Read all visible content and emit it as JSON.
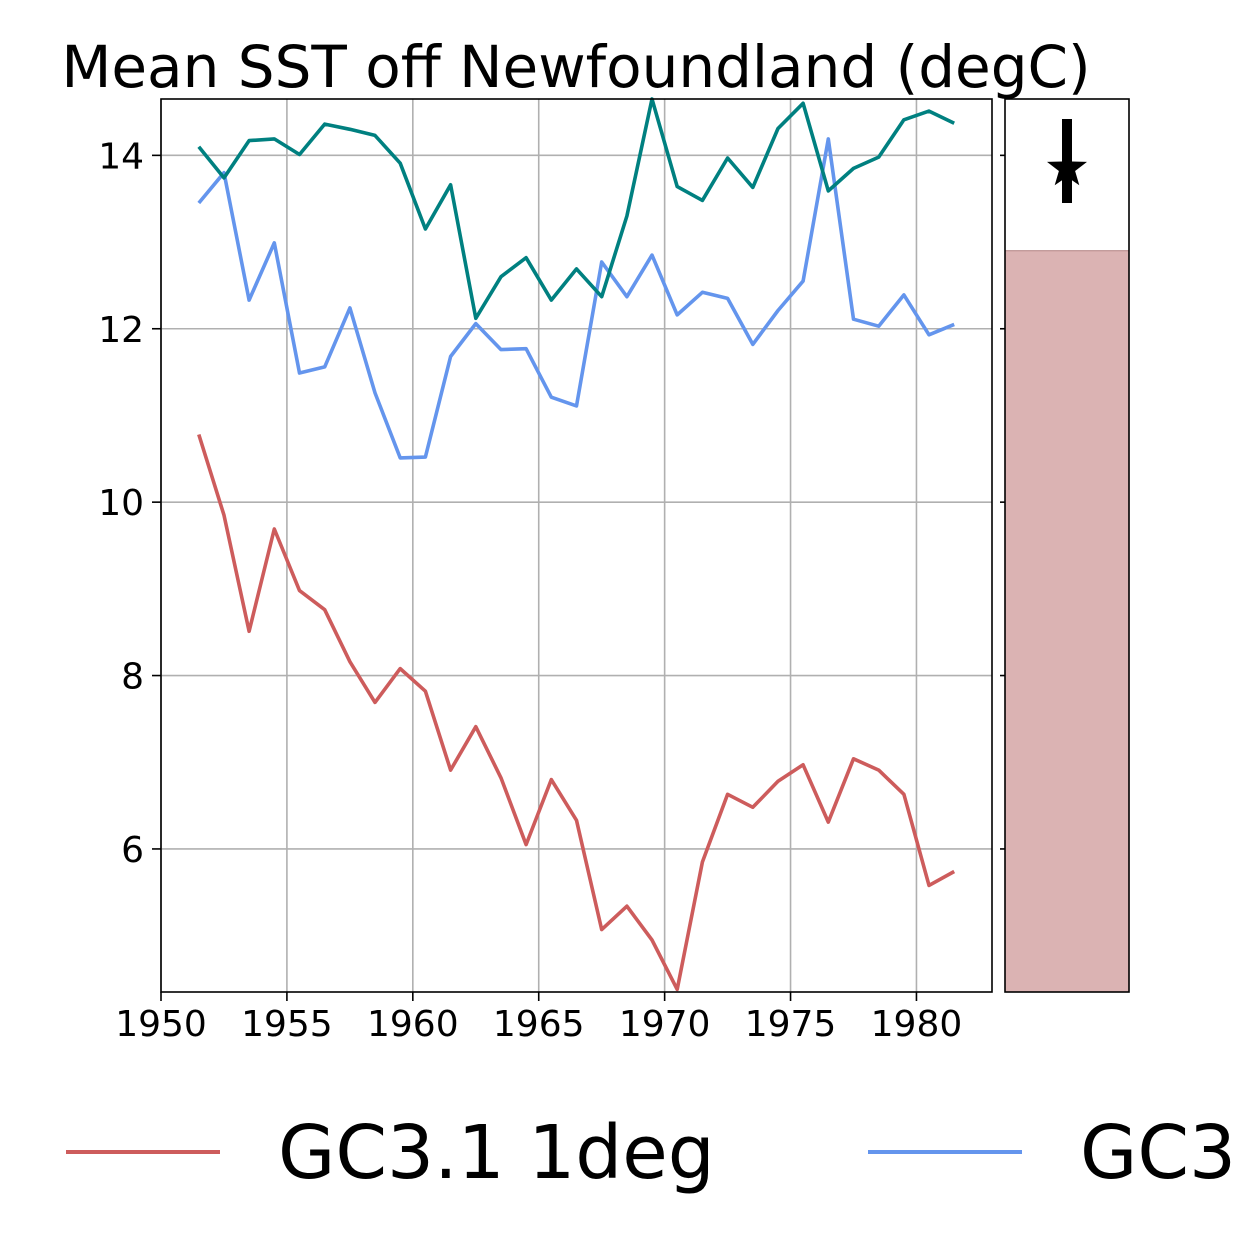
{
  "chart_data": {
    "type": "line",
    "title": "Mean SST off Newfoundland (degC)",
    "xlabel": "",
    "ylabel": "",
    "xlim": [
      1950,
      1983
    ],
    "ylim": [
      4.35,
      14.65
    ],
    "grid": true,
    "x_ticks": [
      "1950",
      "1955",
      "1960",
      "1965",
      "1970",
      "1975",
      "1980"
    ],
    "y_ticks": [
      "6",
      "8",
      "10",
      "12",
      "14"
    ],
    "x": [
      1951.5,
      1952.5,
      1953.5,
      1954.5,
      1955.5,
      1956.5,
      1957.5,
      1958.5,
      1959.5,
      1960.5,
      1961.5,
      1962.5,
      1963.5,
      1964.5,
      1965.5,
      1966.5,
      1967.5,
      1968.5,
      1969.5,
      1970.5,
      1971.5,
      1972.5,
      1973.5,
      1974.5,
      1975.5,
      1976.5,
      1977.5,
      1978.5,
      1979.5,
      1980.5,
      1981.5
    ],
    "series": [
      {
        "name": "GC3.1 1deg",
        "color": "#cd5c5c",
        "values": [
          10.78,
          9.85,
          8.51,
          9.69,
          8.98,
          8.76,
          8.16,
          7.69,
          8.08,
          7.82,
          6.91,
          7.41,
          6.82,
          6.05,
          6.8,
          6.33,
          5.07,
          5.34,
          4.95,
          4.38,
          5.85,
          6.63,
          6.48,
          6.78,
          6.97,
          6.31,
          7.04,
          6.91,
          6.63,
          5.58,
          5.74
        ]
      },
      {
        "name": "GC3",
        "color": "#6495ed",
        "values": [
          13.45,
          13.8,
          12.33,
          12.99,
          11.49,
          11.56,
          12.24,
          11.26,
          10.51,
          10.52,
          11.68,
          12.06,
          11.76,
          11.77,
          11.21,
          11.11,
          12.77,
          12.37,
          12.85,
          12.16,
          12.42,
          12.35,
          11.82,
          12.21,
          12.55,
          14.19,
          12.11,
          12.03,
          12.39,
          11.93,
          12.05
        ]
      },
      {
        "values": [
          14.1,
          13.74,
          14.17,
          14.19,
          14.01,
          14.36,
          14.3,
          14.23,
          13.91,
          13.15,
          13.66,
          12.12,
          12.6,
          12.82,
          12.33,
          12.69,
          12.37,
          13.3,
          14.65,
          13.64,
          13.48,
          13.97,
          13.63,
          14.31,
          14.6,
          13.59,
          13.85,
          13.98,
          14.41,
          14.51,
          14.37
        ]
      }
    ],
    "side_panel": {
      "bar_top": 12.9,
      "bar_color": "#dbb3b3",
      "marker_value": 13.85,
      "errorbar_low": 13.45,
      "errorbar_high": 14.42
    },
    "legend": [
      "GC3.1 1deg",
      "GC3"
    ],
    "legend_position": "bottom"
  }
}
